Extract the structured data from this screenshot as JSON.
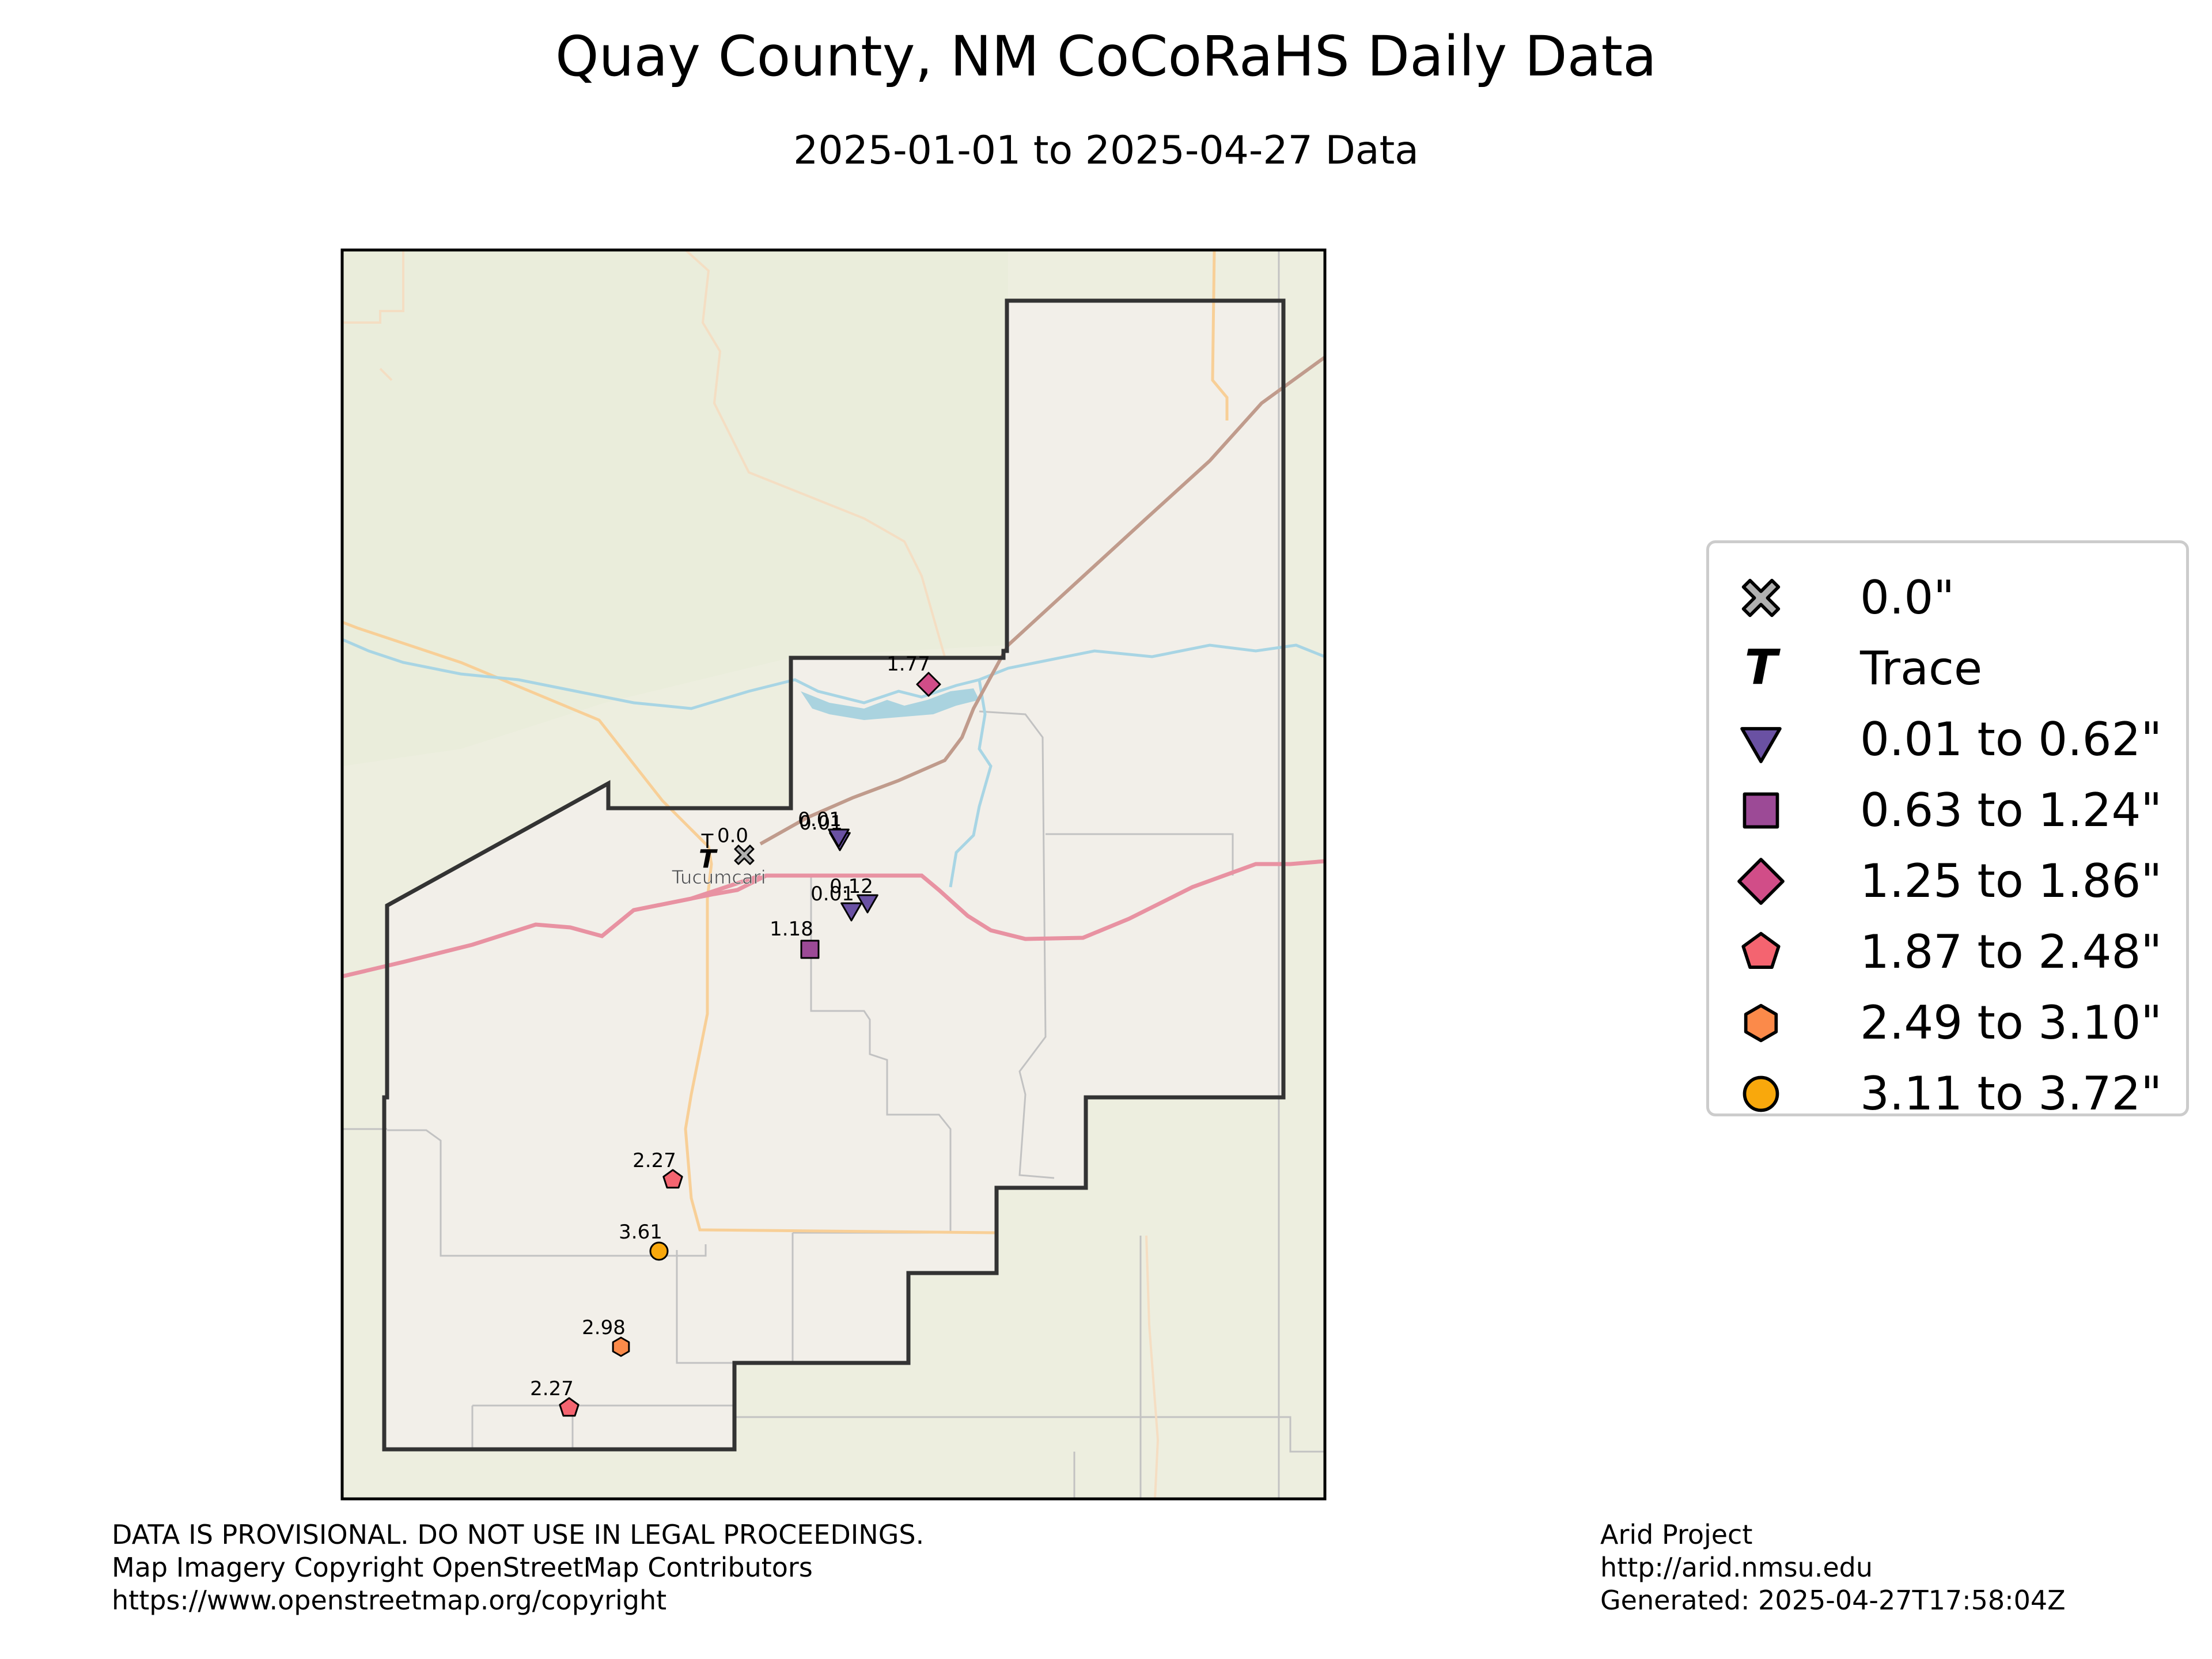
{
  "title": "Quay County, NM CoCoRaHS Daily Data",
  "subtitle": "2025-01-01 to 2025-04-27 Data",
  "map": {
    "place_label": "Tucumcari",
    "stations": [
      {
        "value": "0.0",
        "category": "zero"
      },
      {
        "value": "T",
        "category": "trace"
      },
      {
        "value": "0.01",
        "category": "c1"
      },
      {
        "value": "0.01",
        "category": "c1"
      },
      {
        "value": "0.12",
        "category": "c1"
      },
      {
        "value": "0.01",
        "category": "c1"
      },
      {
        "value": "1.18",
        "category": "c2"
      },
      {
        "value": "1.77",
        "category": "c3"
      },
      {
        "value": "2.27",
        "category": "c4"
      },
      {
        "value": "3.61",
        "category": "c6"
      },
      {
        "value": "2.98",
        "category": "c5"
      },
      {
        "value": "2.27",
        "category": "c4"
      }
    ]
  },
  "legend": {
    "items": [
      {
        "label": "0.0\"",
        "symbol": "x-icon",
        "color": "#b0b0b0"
      },
      {
        "label": "Trace",
        "symbol": "trace-t-icon",
        "color": "#000000"
      },
      {
        "label": "0.01 to 0.62\"",
        "symbol": "triangle-down-icon",
        "color": "#6a51a3"
      },
      {
        "label": "0.63 to 1.24\"",
        "symbol": "square-icon",
        "color": "#9c4a96"
      },
      {
        "label": "1.25 to 1.86\"",
        "symbol": "diamond-icon",
        "color": "#d14d88"
      },
      {
        "label": "1.87 to 2.48\"",
        "symbol": "pentagon-icon",
        "color": "#f46470"
      },
      {
        "label": "2.49 to 3.10\"",
        "symbol": "hexagon-icon",
        "color": "#fb8a4a"
      },
      {
        "label": "3.11 to 3.72\"",
        "symbol": "circle-icon",
        "color": "#f9a80c"
      }
    ]
  },
  "footer": {
    "left": [
      "DATA IS PROVISIONAL. DO NOT USE IN LEGAL PROCEEDINGS.",
      "Map Imagery Copyright OpenStreetMap Contributors",
      "https://www.openstreetmap.org/copyright"
    ],
    "right": [
      "Arid Project",
      "http://arid.nmsu.edu",
      "Generated: 2025-04-27T17:58:04Z"
    ]
  }
}
